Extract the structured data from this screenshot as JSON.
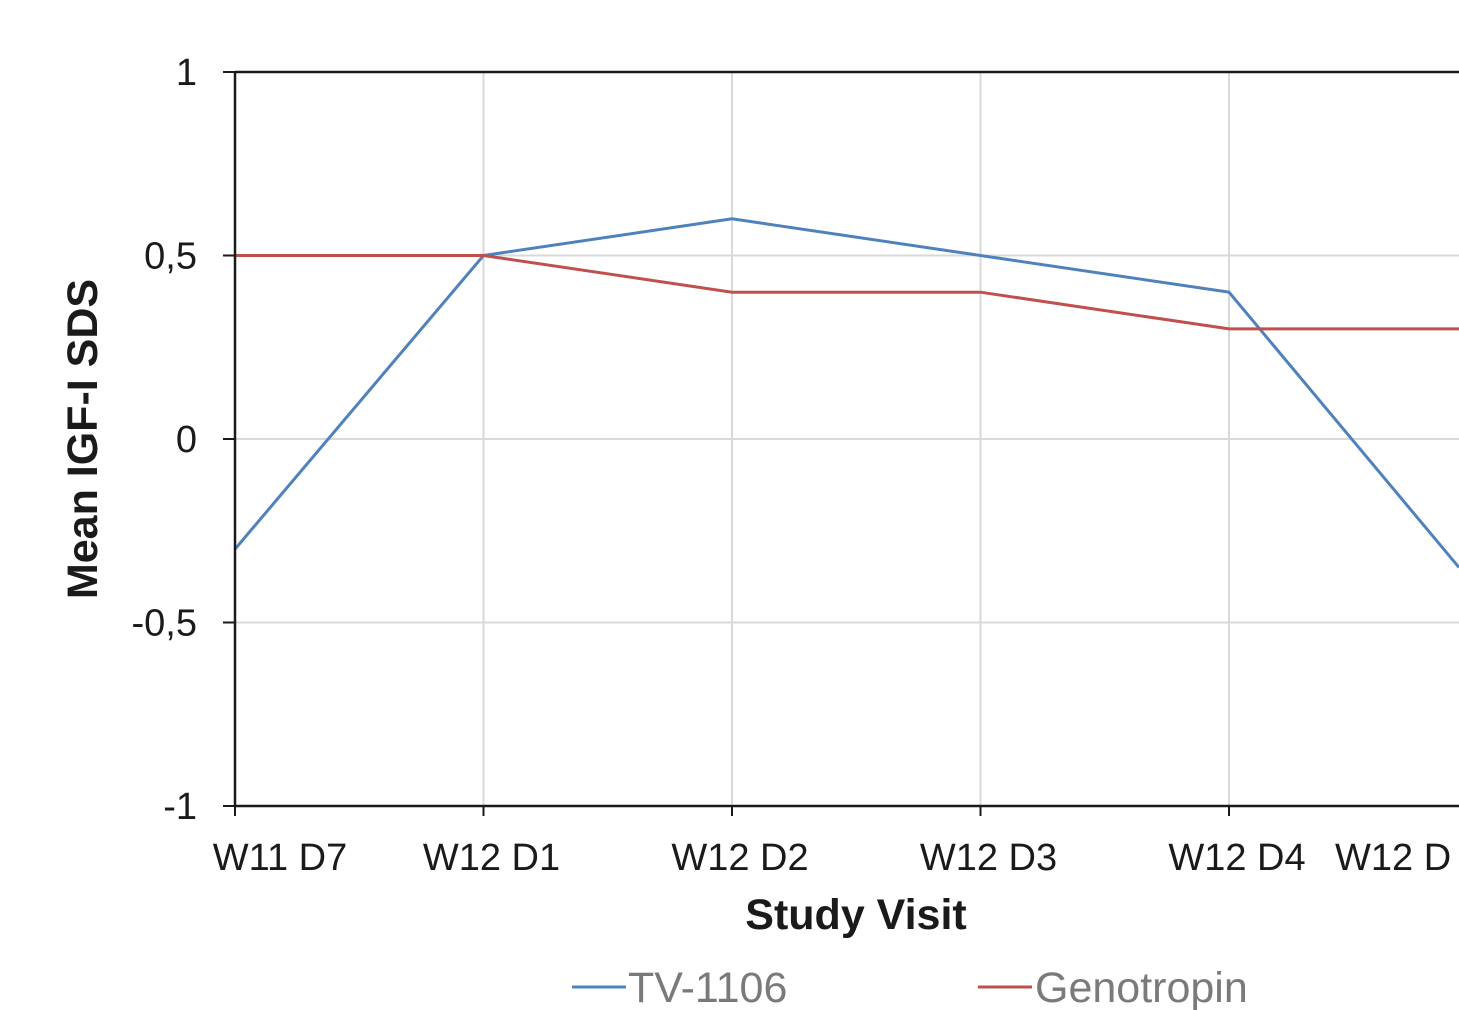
{
  "chart_data": {
    "type": "line",
    "categories": [
      "W11 D7",
      "W12 D1",
      "W12 D2",
      "W12 D3",
      "W12 D4",
      "W12 D"
    ],
    "series": [
      {
        "name": "TV-1106",
        "values": [
          -0.3,
          0.5,
          0.6,
          0.5,
          0.4,
          -0.35
        ],
        "color": "#4f81bd"
      },
      {
        "name": "Genotropin",
        "values": [
          0.5,
          0.5,
          0.4,
          0.4,
          0.3,
          0.3
        ],
        "color": "#c0504d"
      }
    ],
    "xlabel": "Study Visit",
    "ylabel": "Mean IGF-I SDS",
    "ylim": [
      -1,
      1
    ],
    "yticks": [
      1,
      0.5,
      0,
      -0.5,
      -1
    ],
    "ytick_labels": [
      "1",
      "0,5",
      "0",
      "-0,5",
      "-1"
    ],
    "grid": true,
    "legend_position": "bottom"
  }
}
